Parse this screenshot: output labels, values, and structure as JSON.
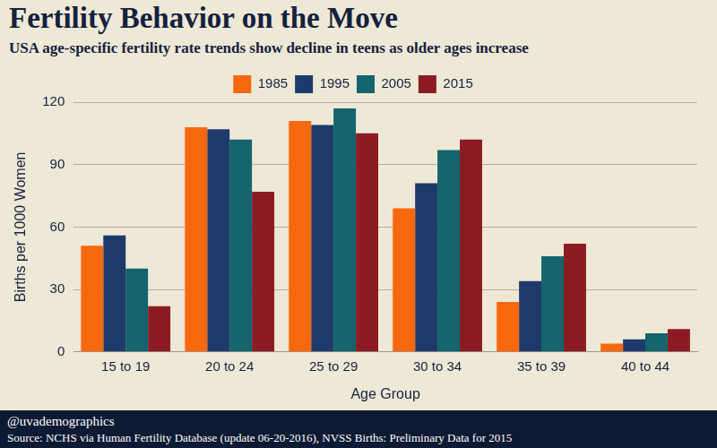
{
  "chart_data": {
    "type": "bar",
    "title": "Fertility Behavior on the Move",
    "subtitle": "USA age-specific fertility rate trends show decline in teens as older ages increase",
    "x_label": "Age Group",
    "y_label": "Births per 1000 Women",
    "credit": "@uvademographics",
    "source": "Source: NCHS via Human Fertility Database (update 06-20-2016), NVSS Births: Preliminary Data for 2015",
    "categories": [
      "15 to 19",
      "20 to 24",
      "25 to 29",
      "30 to 34",
      "35 to 39",
      "40 to 44"
    ],
    "series": [
      {
        "name": "1985",
        "color": "#f8680f",
        "values": [
          51,
          108,
          111,
          69,
          24,
          4
        ]
      },
      {
        "name": "1995",
        "color": "#1e3a6b",
        "values": [
          56,
          107,
          109,
          81,
          34,
          6
        ]
      },
      {
        "name": "2005",
        "color": "#13646d",
        "values": [
          40,
          102,
          117,
          97,
          46,
          9
        ]
      },
      {
        "name": "2015",
        "color": "#8c1b24",
        "values": [
          22,
          77,
          105,
          102,
          52,
          11
        ]
      }
    ],
    "ylim": [
      0,
      120
    ],
    "yticks": [
      0,
      30,
      60,
      90,
      120
    ],
    "grid": true,
    "legend": "top"
  }
}
